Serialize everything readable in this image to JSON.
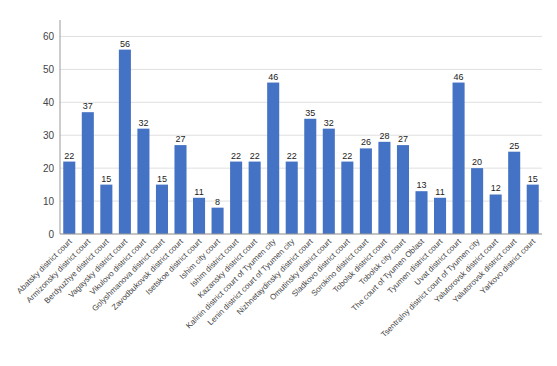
{
  "chart_data": {
    "type": "bar",
    "categories": [
      "Abatsky district court",
      "Armizonsky district court",
      "Berdyuzhye district court",
      "Vagaysky district court",
      "Vikulovo district court",
      "Golyshmanova district court",
      "Zavodbukovsk district court",
      "Isetskoe district court",
      "Ishim city court",
      "Ishim district court",
      "Kazansky district court",
      "Kalinin district court of Tyumen city",
      "Lenin district court of Tyumen city",
      "Nizhnetaydinsky district court",
      "Omutinsky district court",
      "Sladkovo district court",
      "Sorokino district court",
      "Tobolsk district court",
      "Tobolsk city court",
      "The court of Tyumen Oblast",
      "Tyumen district court",
      "Uvat district court",
      "Tsentralny district court of Tyumen city",
      "Yalutorovsk district court",
      "Yalutorovsk district court",
      "Yarkovo district court"
    ],
    "values": [
      22,
      37,
      15,
      56,
      32,
      15,
      27,
      11,
      8,
      22,
      22,
      46,
      22,
      35,
      32,
      22,
      26,
      28,
      27,
      13,
      11,
      46,
      20,
      12,
      25,
      15
    ],
    "color": "#4472C4",
    "ylim": [
      0,
      65
    ],
    "yticks": [
      0,
      10,
      20,
      30,
      40,
      50,
      60
    ],
    "grid": true,
    "data_labels": true
  }
}
